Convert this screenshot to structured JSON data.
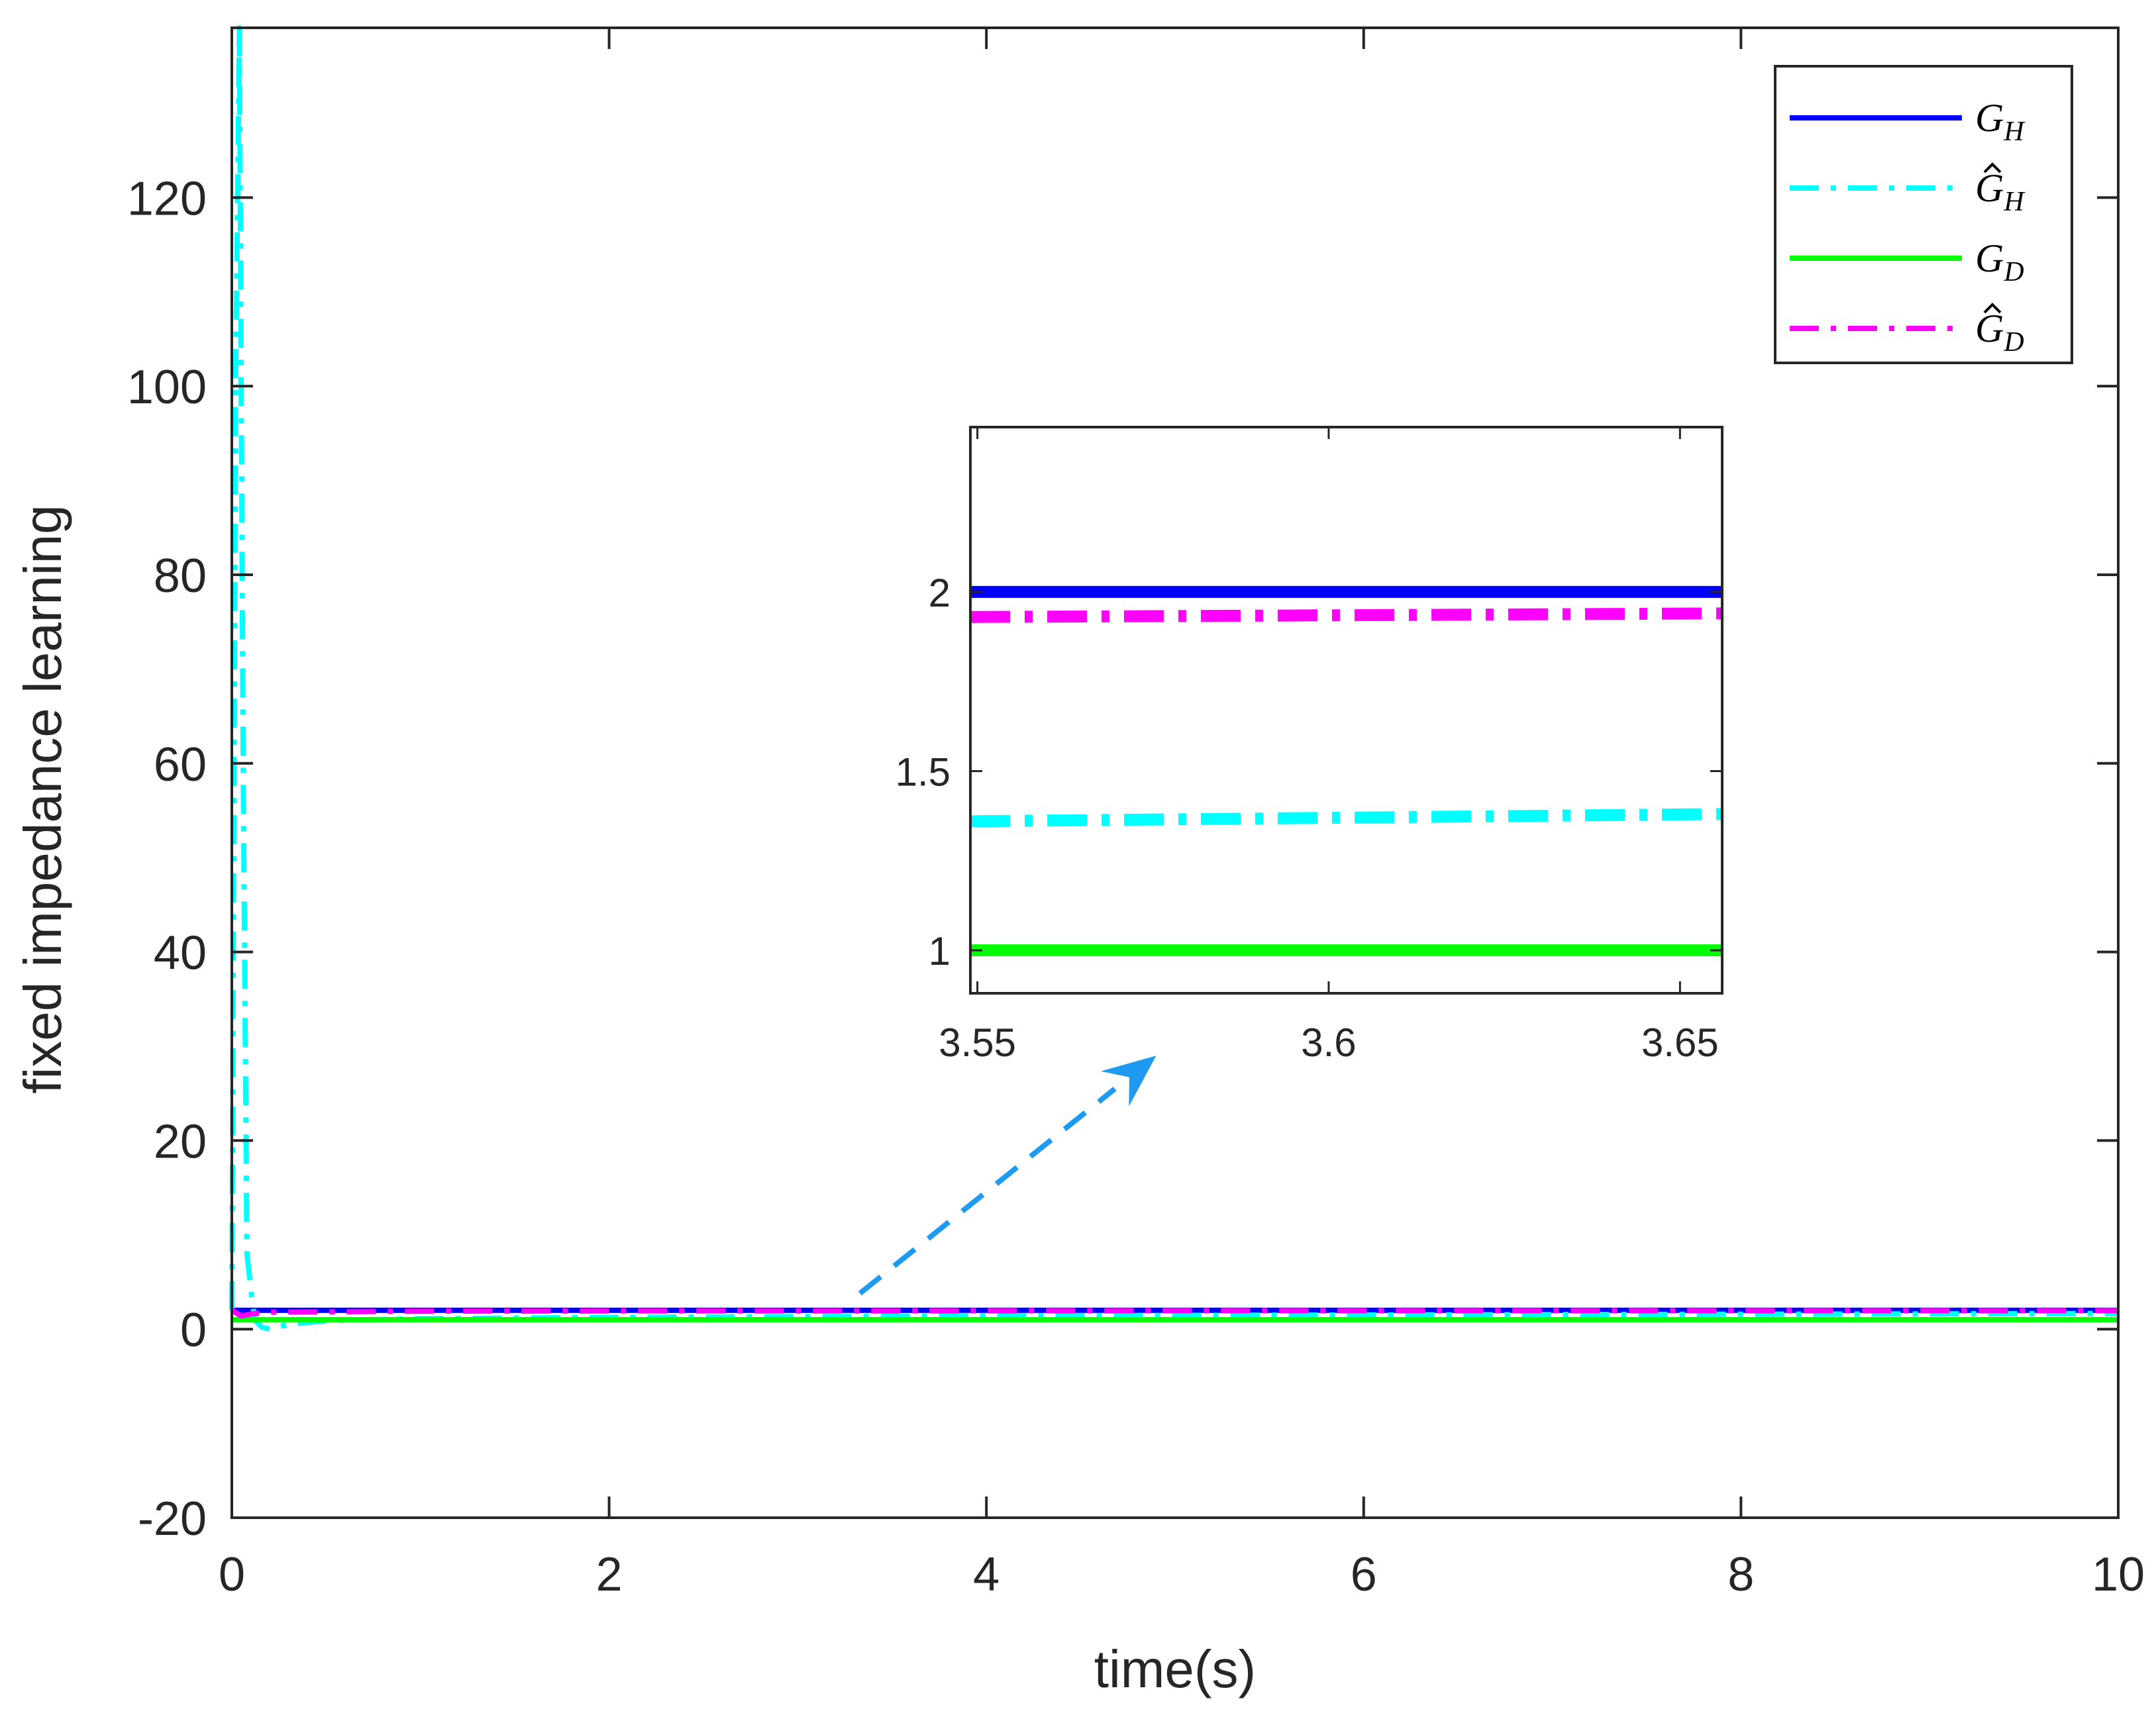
{
  "chart_data": {
    "type": "line",
    "title": "",
    "xlabel": "time(s)",
    "ylabel": "fixed impedance learning",
    "xlim": [
      0,
      10
    ],
    "ylim": [
      -20,
      138
    ],
    "xticks": [
      0,
      2,
      4,
      6,
      8,
      10
    ],
    "xtick_labels": [
      "0",
      "2",
      "4",
      "6",
      "8",
      "10"
    ],
    "yticks": [
      -20,
      0,
      20,
      40,
      60,
      80,
      100,
      120
    ],
    "ytick_labels": [
      "-20",
      "0",
      "20",
      "40",
      "60",
      "80",
      "100",
      "120"
    ],
    "grid": false,
    "legend_position": "top-right",
    "series": [
      {
        "name": "G_H",
        "label_main": "G",
        "label_sub": "H",
        "hat": false,
        "color": "#0000ff",
        "style": "solid",
        "x": [
          0,
          10
        ],
        "y": [
          2,
          2
        ]
      },
      {
        "name": "Ĝ_H",
        "label_main": "G",
        "label_sub": "H",
        "hat": true,
        "color": "#00ffff",
        "style": "dash-dot",
        "x": [
          0,
          0.02,
          0.04,
          0.06,
          0.08,
          0.12,
          0.16,
          0.2,
          0.3,
          0.5,
          1,
          2,
          3.55,
          3.65,
          5,
          7,
          10
        ],
        "y": [
          2,
          100,
          138,
          60,
          8,
          1,
          0.2,
          0,
          0.5,
          0.9,
          1.1,
          1.25,
          1.36,
          1.38,
          1.45,
          1.55,
          1.65
        ]
      },
      {
        "name": "G_D",
        "label_main": "G",
        "label_sub": "D",
        "hat": false,
        "color": "#00ff00",
        "style": "solid",
        "x": [
          0,
          10
        ],
        "y": [
          1,
          1
        ]
      },
      {
        "name": "Ĝ_D",
        "label_main": "G",
        "label_sub": "D",
        "hat": true,
        "color": "#ff00ff",
        "style": "dash-dot",
        "x": [
          0,
          0.05,
          0.1,
          0.2,
          1,
          2,
          3.55,
          3.65,
          5,
          7,
          10
        ],
        "y": [
          2,
          1.4,
          1.6,
          1.8,
          1.9,
          1.92,
          1.93,
          1.94,
          1.95,
          1.95,
          1.96
        ]
      }
    ],
    "inset": {
      "xlim": [
        3.549,
        3.656
      ],
      "ylim": [
        0.88,
        2.46
      ],
      "xticks": [
        3.55,
        3.6,
        3.65
      ],
      "xtick_labels": [
        "3.55",
        "3.6",
        "3.65"
      ],
      "yticks": [
        1,
        1.5,
        2
      ],
      "ytick_labels": [
        "1",
        "1.5",
        "2"
      ]
    },
    "annotation": {
      "type": "arrow",
      "style": "dashed",
      "color": "#1e9bf0",
      "from": [
        3.33,
        3.8
      ],
      "to": [
        4.9,
        29
      ]
    }
  }
}
